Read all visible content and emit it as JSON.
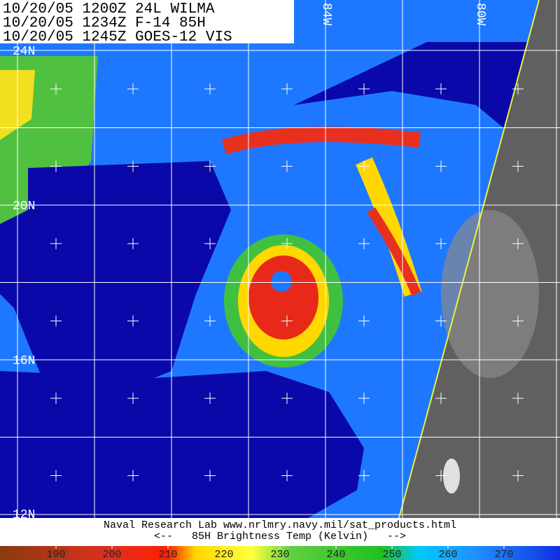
{
  "header": {
    "lines": [
      "10/20/05 1200Z 24L WILMA",
      "10/20/05 1234Z F-14 85H",
      "10/20/05 1245Z GOES-12 VIS"
    ]
  },
  "latitude_labels": [
    "24N",
    "20N",
    "16N",
    "12N"
  ],
  "longitude_labels": [
    "84W",
    "80W"
  ],
  "footer": {
    "credit": "Naval Research Lab  www.nrlmry.navy.mil/sat_products.html",
    "scale_title": "<--   85H Brightness Temp (Kelvin)   -->"
  },
  "colorbar": {
    "range": [
      180,
      280
    ],
    "ticks": [
      190,
      200,
      210,
      220,
      230,
      240,
      250,
      260,
      270
    ],
    "stops": [
      {
        "value": 180,
        "color": "#8a3a10"
      },
      {
        "value": 200,
        "color": "#e03020"
      },
      {
        "value": 210,
        "color": "#ff2000"
      },
      {
        "value": 215,
        "color": "#ffd800"
      },
      {
        "value": 225,
        "color": "#ffff40"
      },
      {
        "value": 232,
        "color": "#60d040"
      },
      {
        "value": 248,
        "color": "#20c020"
      },
      {
        "value": 255,
        "color": "#00c8ff"
      },
      {
        "value": 265,
        "color": "#2090ff"
      },
      {
        "value": 280,
        "color": "#1030e0"
      }
    ]
  }
}
